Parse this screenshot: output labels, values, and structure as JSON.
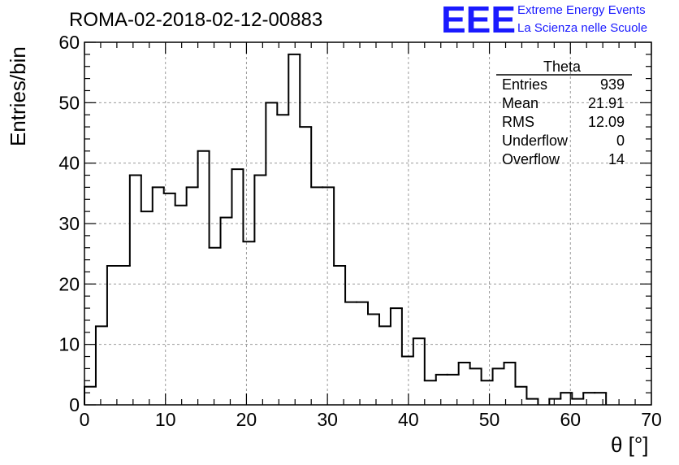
{
  "title": "ROMA-02-2018-02-12-00883",
  "brand": {
    "logo": "EEE",
    "line1": "Extreme Energy Events",
    "line2": "La Scienza nelle Scuole",
    "color": "#1a1aff"
  },
  "stats": {
    "name": "Theta",
    "rows": [
      {
        "label": "Entries",
        "value": "939"
      },
      {
        "label": "Mean",
        "value": "21.91"
      },
      {
        "label": "RMS",
        "value": "12.09"
      },
      {
        "label": "Underflow",
        "value": "0"
      },
      {
        "label": "Overflow",
        "value": "14"
      }
    ]
  },
  "chart_data": {
    "type": "bar",
    "title": "ROMA-02-2018-02-12-00883",
    "xlabel": "θ [°]",
    "ylabel": "Entries/bin",
    "xlim": [
      0,
      70
    ],
    "ylim": [
      0,
      60
    ],
    "bin_width": 1.4,
    "x_ticks": [
      0,
      10,
      20,
      30,
      40,
      50,
      60,
      70
    ],
    "y_ticks": [
      0,
      10,
      20,
      30,
      40,
      50,
      60
    ],
    "grid": true,
    "legend": "top-right",
    "values": [
      3,
      13,
      23,
      23,
      38,
      32,
      36,
      35,
      33,
      36,
      42,
      26,
      31,
      39,
      27,
      38,
      50,
      48,
      58,
      46,
      36,
      36,
      23,
      17,
      17,
      15,
      13,
      16,
      8,
      11,
      4,
      5,
      5,
      7,
      6,
      4,
      6,
      7,
      3,
      1,
      0,
      1,
      2,
      1,
      2,
      2,
      0,
      0,
      0,
      0
    ]
  }
}
